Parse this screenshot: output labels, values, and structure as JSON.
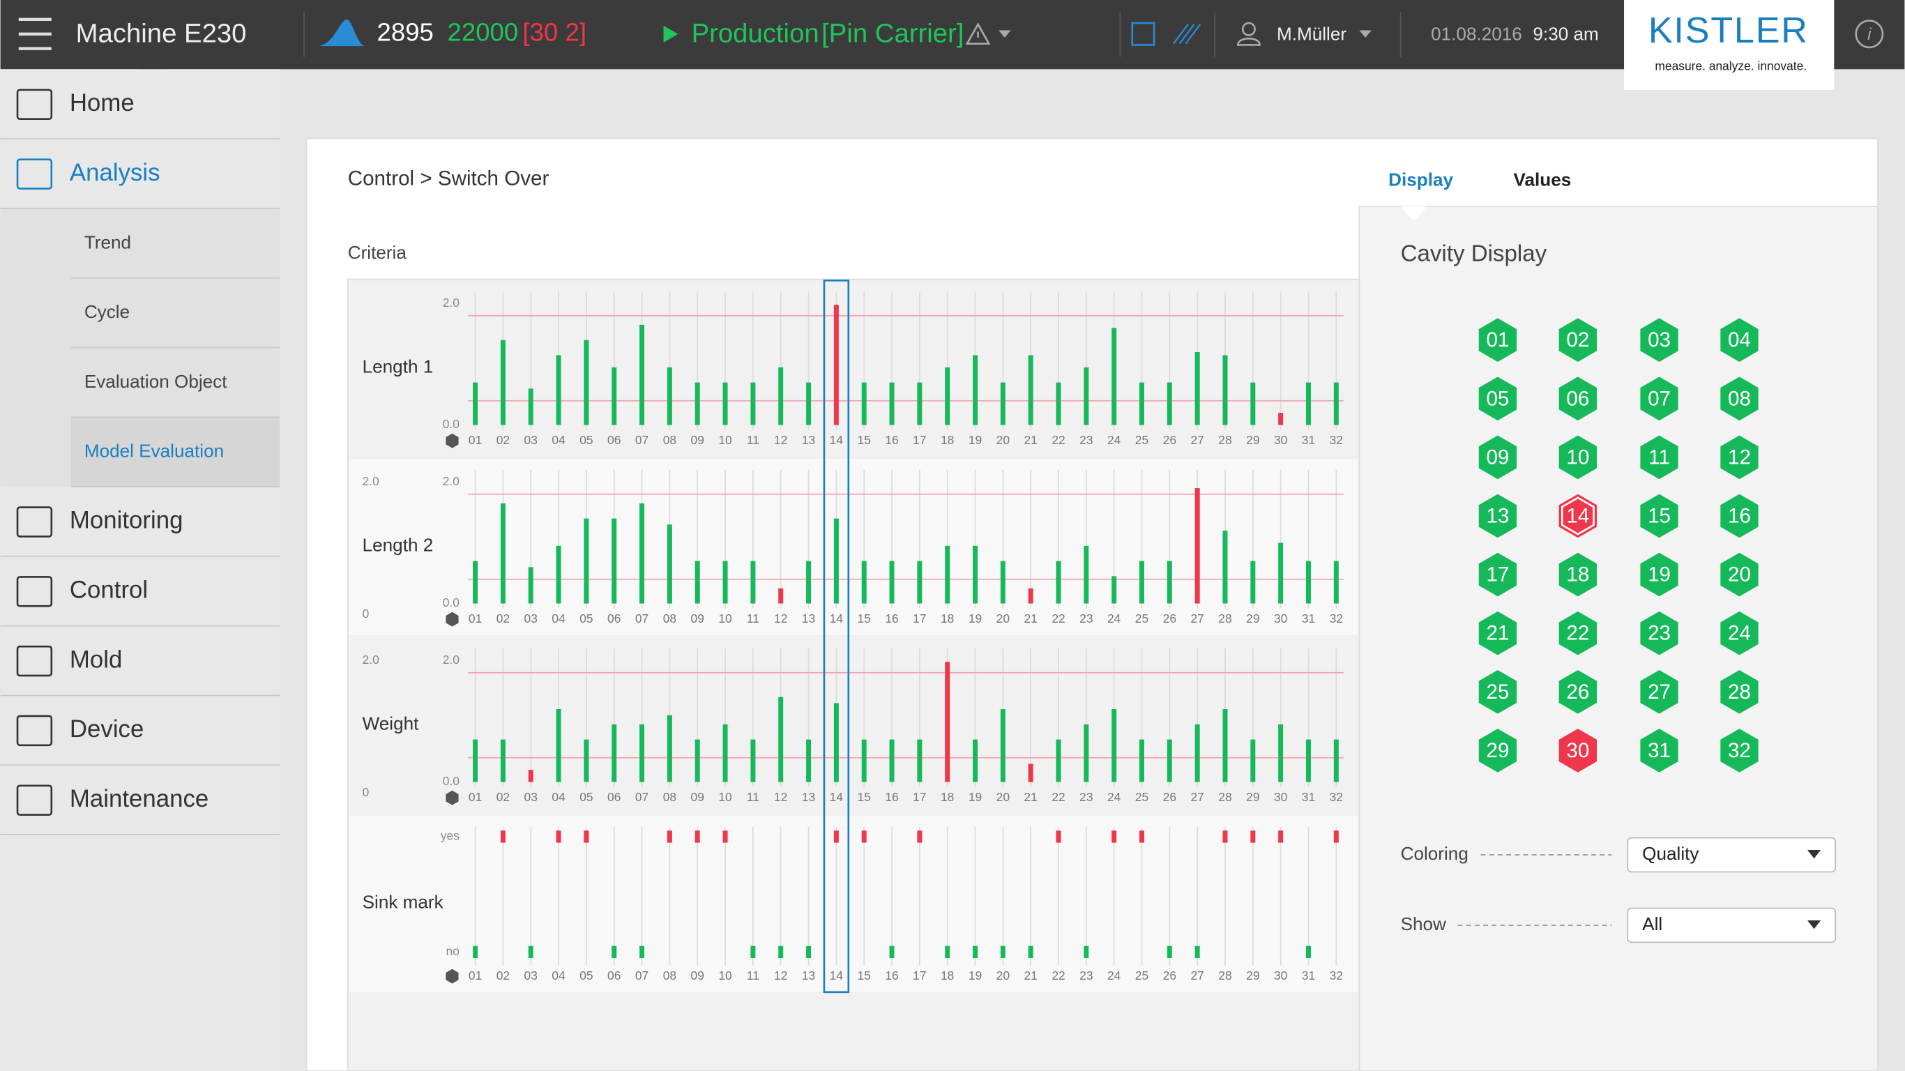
{
  "header": {
    "machine": "Machine E230",
    "cycle": "2895",
    "count": "22000",
    "count_detail": "[30 2]",
    "mode": "Production",
    "mode_detail": "[Pin Carrier]",
    "user": "M.Müller",
    "date": "01.08.2016",
    "time": "9:30 am",
    "logo": "KISTLER",
    "tagline": "measure. analyze. innovate."
  },
  "nav": [
    {
      "label": "Home",
      "color": "#333333"
    },
    {
      "label": "Analysis",
      "color": "#1a7fc1",
      "children": [
        {
          "label": "Trend",
          "color": "#444444"
        },
        {
          "label": "Cycle",
          "color": "#444444"
        },
        {
          "label": "Evaluation Object",
          "color": "#444444"
        },
        {
          "label": "Model Evaluation",
          "color": "#1a7fc1"
        }
      ]
    },
    {
      "label": "Monitoring",
      "color": "#333333"
    },
    {
      "label": "Control",
      "color": "#333333"
    },
    {
      "label": "Mold",
      "color": "#333333"
    },
    {
      "label": "Device",
      "color": "#333333"
    },
    {
      "label": "Maintenance",
      "color": "#333333"
    }
  ],
  "breadcrumb": "Control > Switch Over",
  "criteria": {
    "title": "Criteria",
    "categories": [
      "01",
      "02",
      "03",
      "04",
      "05",
      "06",
      "07",
      "08",
      "09",
      "10",
      "11",
      "12",
      "13",
      "14",
      "15",
      "16",
      "17",
      "18",
      "19",
      "20",
      "21",
      "22",
      "23",
      "24",
      "25",
      "26",
      "27",
      "28",
      "29",
      "30",
      "31",
      "32"
    ],
    "selected": "14",
    "ylim": [
      0,
      2
    ],
    "limits": [
      0.4,
      1.8
    ],
    "ok_color": "#16b95a",
    "bad_color": "#f0364a",
    "rows": [
      {
        "name": "Length 1",
        "ticks": [
          {
            "value": 2,
            "label": "2.0"
          },
          {
            "value": 0,
            "label": "0.0"
          }
        ],
        "values": [
          0.7,
          1.4,
          0.6,
          1.15,
          1.4,
          0.95,
          1.65,
          0.95,
          0.7,
          0.7,
          0.7,
          0.95,
          0.7,
          1.98,
          0.7,
          0.7,
          0.7,
          0.95,
          1.15,
          0.7,
          1.15,
          0.7,
          0.95,
          1.6,
          0.7,
          0.7,
          1.2,
          1.15,
          0.7,
          0.2,
          0.7,
          0.7
        ]
      },
      {
        "name": "Length 2",
        "ticks": [
          {
            "value": 2,
            "label": "2.0"
          },
          {
            "value": 0,
            "label": "0.0"
          }
        ],
        "outer_ticks": [
          {
            "value": 2,
            "label": "2.0"
          },
          0
        ],
        "values": [
          0.7,
          1.65,
          0.6,
          0.95,
          1.4,
          1.4,
          1.65,
          1.3,
          0.7,
          0.7,
          0.7,
          0.25,
          0.7,
          1.4,
          0.7,
          0.7,
          0.7,
          0.95,
          0.95,
          0.7,
          0.25,
          0.7,
          0.95,
          0.45,
          0.7,
          0.7,
          1.9,
          1.2,
          0.7,
          1.0,
          0.7,
          0.7
        ]
      },
      {
        "name": "Weight",
        "ticks": [
          {
            "value": 2,
            "label": "2.0"
          },
          {
            "value": 0,
            "label": "0.0"
          }
        ],
        "outer_ticks": [
          {
            "value": 2,
            "label": "2.0"
          },
          0
        ],
        "values": [
          0.7,
          0.7,
          0.2,
          1.2,
          0.7,
          0.95,
          0.95,
          1.1,
          0.7,
          0.95,
          0.7,
          1.4,
          0.7,
          1.3,
          0.7,
          0.7,
          0.7,
          1.98,
          0.7,
          1.2,
          0.3,
          0.7,
          0.95,
          1.2,
          0.7,
          0.7,
          0.95,
          1.2,
          0.7,
          0.95,
          0.7,
          0.7
        ]
      },
      {
        "name": "Sink mark",
        "ticks": [
          "yes",
          "no"
        ],
        "tick_colors": [
          "#f0364a",
          "#16b95a"
        ],
        "values": [
          "no",
          "yes",
          "no",
          "yes",
          "yes",
          "no",
          "no",
          "yes",
          "yes",
          "yes",
          "no",
          "no",
          "no",
          "yes",
          "yes",
          "no",
          "yes",
          "no",
          "no",
          "no",
          "no",
          "yes",
          "no",
          "yes",
          "yes",
          "no",
          "no",
          "yes",
          "yes",
          "yes",
          "no",
          "yes"
        ]
      }
    ]
  },
  "tabs": [
    {
      "label": "Display",
      "color": "#1a7fc1"
    },
    {
      "label": "Values",
      "color": "#222222"
    }
  ],
  "cavity_display": {
    "title": "Cavity Display",
    "cavities": [
      {
        "label": "01",
        "color": "#16b95a"
      },
      {
        "label": "02",
        "color": "#16b95a"
      },
      {
        "label": "03",
        "color": "#16b95a"
      },
      {
        "label": "04",
        "color": "#16b95a"
      },
      {
        "label": "05",
        "color": "#16b95a"
      },
      {
        "label": "06",
        "color": "#16b95a"
      },
      {
        "label": "07",
        "color": "#16b95a"
      },
      {
        "label": "08",
        "color": "#16b95a"
      },
      {
        "label": "09",
        "color": "#16b95a"
      },
      {
        "label": "10",
        "color": "#16b95a"
      },
      {
        "label": "11",
        "color": "#16b95a"
      },
      {
        "label": "12",
        "color": "#16b95a"
      },
      {
        "label": "13",
        "color": "#16b95a"
      },
      {
        "label": "14",
        "color": "#f0364a",
        "selected": true
      },
      {
        "label": "15",
        "color": "#16b95a"
      },
      {
        "label": "16",
        "color": "#16b95a"
      },
      {
        "label": "17",
        "color": "#16b95a"
      },
      {
        "label": "18",
        "color": "#16b95a"
      },
      {
        "label": "19",
        "color": "#16b95a"
      },
      {
        "label": "20",
        "color": "#16b95a"
      },
      {
        "label": "21",
        "color": "#16b95a"
      },
      {
        "label": "22",
        "color": "#16b95a"
      },
      {
        "label": "23",
        "color": "#16b95a"
      },
      {
        "label": "24",
        "color": "#16b95a"
      },
      {
        "label": "25",
        "color": "#16b95a"
      },
      {
        "label": "26",
        "color": "#16b95a"
      },
      {
        "label": "27",
        "color": "#16b95a"
      },
      {
        "label": "28",
        "color": "#16b95a"
      },
      {
        "label": "29",
        "color": "#16b95a"
      },
      {
        "label": "30",
        "color": "#f0364a"
      },
      {
        "label": "31",
        "color": "#16b95a"
      },
      {
        "label": "32",
        "color": "#16b95a"
      }
    ],
    "coloring": {
      "label": "Coloring",
      "value": "Quality"
    },
    "show": {
      "label": "Show",
      "value": "All"
    }
  }
}
